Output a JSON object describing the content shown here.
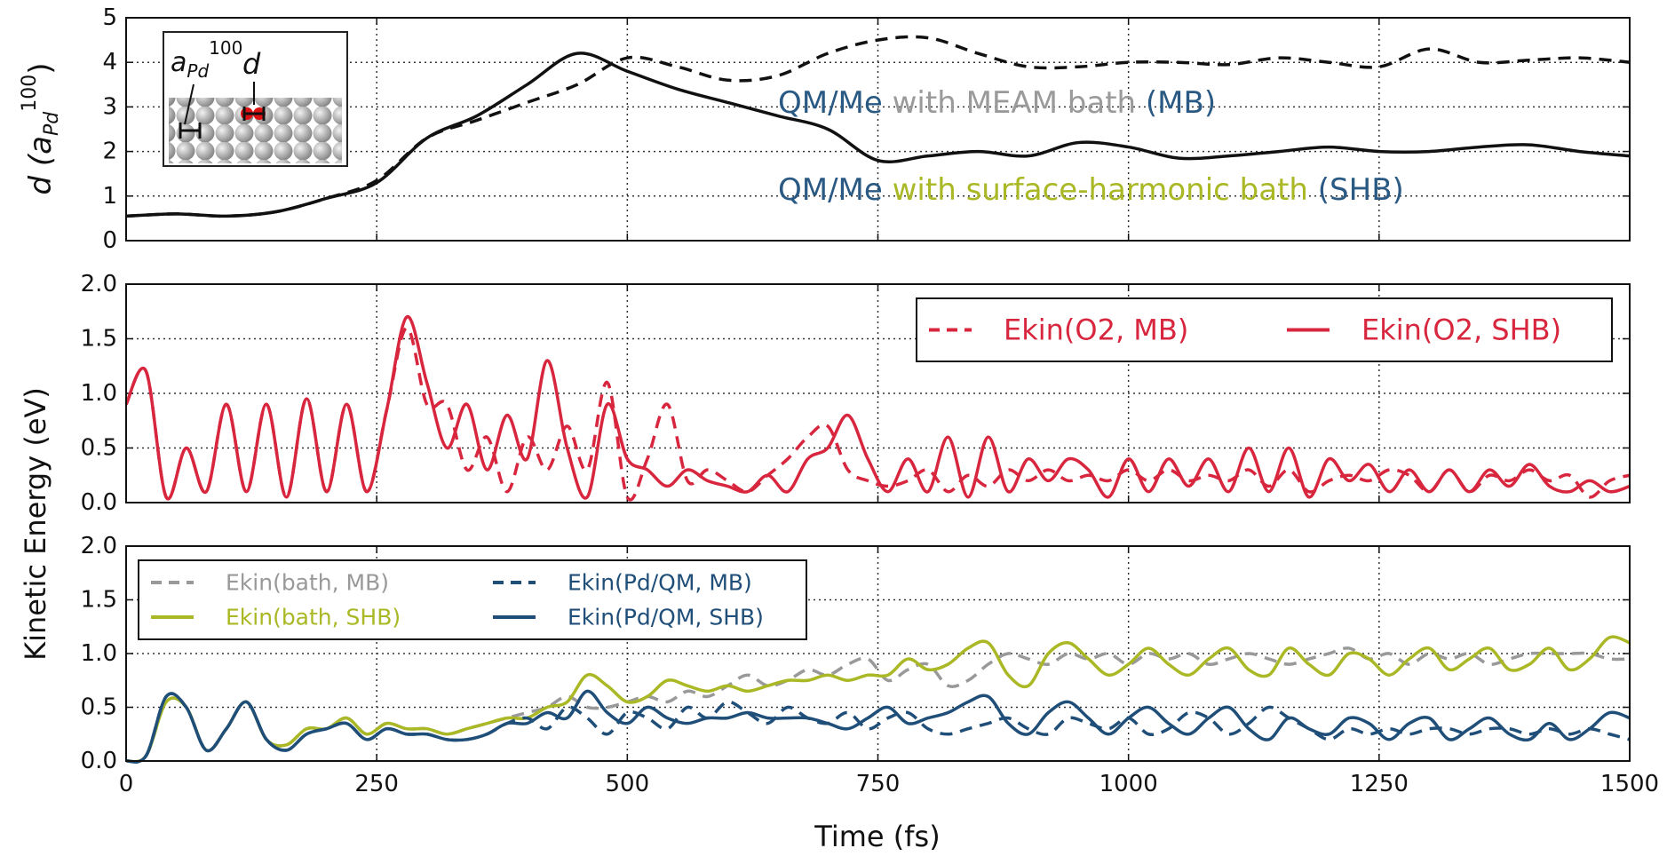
{
  "chart_data": [
    {
      "type": "line",
      "ylabel": {
        "main": "d (a",
        "sub": "Pd",
        "sup": "100",
        "end": ")"
      },
      "x": [
        0,
        50,
        100,
        150,
        200,
        250,
        300,
        350,
        400,
        450,
        500,
        550,
        600,
        650,
        700,
        750,
        800,
        850,
        900,
        950,
        1000,
        1050,
        1100,
        1150,
        1200,
        1250,
        1300,
        1350,
        1400,
        1450,
        1500
      ],
      "series": [
        {
          "color": "#111111",
          "linestyle": "dashed",
          "values": [
            0.55,
            0.6,
            0.55,
            0.65,
            0.95,
            1.35,
            2.3,
            2.7,
            3.1,
            3.5,
            4.1,
            3.9,
            3.6,
            3.7,
            4.2,
            4.5,
            4.55,
            4.2,
            3.9,
            3.9,
            4.0,
            4.0,
            3.95,
            4.1,
            4.0,
            3.9,
            4.3,
            4.0,
            4.05,
            4.1,
            4.0
          ]
        },
        {
          "color": "#111111",
          "linestyle": "solid",
          "values": [
            0.55,
            0.6,
            0.55,
            0.65,
            0.95,
            1.3,
            2.3,
            2.8,
            3.5,
            4.2,
            3.8,
            3.4,
            3.1,
            2.8,
            2.5,
            1.8,
            1.9,
            2.0,
            1.9,
            2.2,
            2.1,
            1.85,
            1.9,
            2.0,
            2.1,
            2.0,
            2.0,
            2.1,
            2.15,
            2.0,
            1.9
          ]
        }
      ],
      "xlim": [
        0,
        1500
      ],
      "xticks": [
        0,
        250,
        500,
        750,
        1000,
        1250,
        1500
      ],
      "show_xtick_labels": false,
      "ylim": [
        0,
        5
      ],
      "yticks": [
        0,
        1,
        2,
        3,
        4,
        5
      ],
      "grid": true,
      "annotations": [
        [
          {
            "text": "QM/Me",
            "color": "#2a5a83"
          },
          {
            "text": "with MEAM bath",
            "color": "#9a9a9a"
          },
          {
            "text": "(MB)",
            "color": "#2a5a83"
          }
        ],
        [
          {
            "text": "QM/Me",
            "color": "#2a5a83"
          },
          {
            "text": "with surface-harmonic bath",
            "color": "#a9b824"
          },
          {
            "text": "(SHB)",
            "color": "#2a5a83"
          }
        ]
      ],
      "inset": {
        "label_a": "a",
        "label_a_sub": "Pd",
        "label_a_sup": "100",
        "label_d": "d"
      }
    },
    {
      "type": "line",
      "ylabel": "Kinetic Energy (eV)",
      "x": [
        0,
        20,
        40,
        60,
        80,
        100,
        120,
        140,
        160,
        180,
        200,
        220,
        240,
        260,
        280,
        300,
        320,
        340,
        360,
        380,
        400,
        420,
        440,
        460,
        480,
        500,
        520,
        540,
        560,
        580,
        600,
        620,
        640,
        660,
        680,
        700,
        720,
        740,
        760,
        780,
        800,
        820,
        840,
        860,
        880,
        900,
        920,
        940,
        960,
        980,
        1000,
        1020,
        1040,
        1060,
        1080,
        1100,
        1120,
        1140,
        1160,
        1180,
        1200,
        1220,
        1240,
        1260,
        1280,
        1300,
        1320,
        1340,
        1360,
        1380,
        1400,
        1420,
        1440,
        1460,
        1480,
        1500
      ],
      "series": [
        {
          "name": "Ekin(O2, MB)",
          "color": "#d7263d",
          "linestyle": "dashed",
          "values": [
            0.9,
            1.2,
            0.05,
            0.5,
            0.1,
            0.9,
            0.1,
            0.9,
            0.05,
            0.95,
            0.1,
            0.9,
            0.1,
            0.85,
            1.6,
            0.9,
            0.9,
            0.3,
            0.6,
            0.1,
            0.6,
            0.3,
            0.7,
            0.3,
            1.1,
            0.05,
            0.4,
            0.9,
            0.2,
            0.3,
            0.2,
            0.1,
            0.25,
            0.4,
            0.6,
            0.7,
            0.3,
            0.2,
            0.15,
            0.2,
            0.3,
            0.1,
            0.25,
            0.15,
            0.3,
            0.2,
            0.3,
            0.2,
            0.25,
            0.2,
            0.3,
            0.2,
            0.3,
            0.2,
            0.25,
            0.2,
            0.3,
            0.15,
            0.3,
            0.1,
            0.2,
            0.25,
            0.2,
            0.3,
            0.25,
            0.1,
            0.3,
            0.1,
            0.25,
            0.2,
            0.3,
            0.2,
            0.25,
            0.05,
            0.2,
            0.25
          ]
        },
        {
          "name": "Ekin(O2, SHB)",
          "color": "#d7263d",
          "linestyle": "solid",
          "values": [
            0.9,
            1.2,
            0.05,
            0.5,
            0.1,
            0.9,
            0.1,
            0.9,
            0.05,
            0.95,
            0.1,
            0.9,
            0.1,
            0.85,
            1.7,
            1.1,
            0.5,
            0.9,
            0.3,
            0.8,
            0.4,
            1.3,
            0.5,
            0.05,
            0.9,
            0.4,
            0.3,
            0.15,
            0.3,
            0.2,
            0.15,
            0.1,
            0.25,
            0.1,
            0.4,
            0.5,
            0.8,
            0.4,
            0.1,
            0.4,
            0.1,
            0.6,
            0.05,
            0.6,
            0.1,
            0.4,
            0.2,
            0.4,
            0.3,
            0.05,
            0.4,
            0.1,
            0.4,
            0.15,
            0.4,
            0.1,
            0.5,
            0.1,
            0.5,
            0.05,
            0.4,
            0.2,
            0.35,
            0.1,
            0.3,
            0.1,
            0.3,
            0.1,
            0.3,
            0.15,
            0.35,
            0.15,
            0.1,
            0.2,
            0.1,
            0.15
          ]
        }
      ],
      "xlim": [
        0,
        1500
      ],
      "xticks": [
        0,
        250,
        500,
        750,
        1000,
        1250,
        1500
      ],
      "show_xtick_labels": false,
      "ylim": [
        0,
        2
      ],
      "yticks": [
        {
          "value": 0,
          "label": "0.0"
        },
        {
          "value": 0.5,
          "label": "0.5"
        },
        {
          "value": 1,
          "label": "1.0"
        },
        {
          "value": 1.5,
          "label": "1.5"
        },
        {
          "value": 2,
          "label": "2.0"
        }
      ],
      "grid": true,
      "legend": "upper right",
      "legend_columns": 2
    },
    {
      "type": "line",
      "xlabel": "Time (fs)",
      "x": [
        0,
        20,
        40,
        60,
        80,
        100,
        120,
        140,
        160,
        180,
        200,
        220,
        240,
        260,
        280,
        300,
        320,
        340,
        360,
        380,
        400,
        420,
        440,
        460,
        480,
        500,
        520,
        540,
        560,
        580,
        600,
        620,
        640,
        660,
        680,
        700,
        720,
        740,
        760,
        780,
        800,
        820,
        840,
        860,
        880,
        900,
        920,
        940,
        960,
        980,
        1000,
        1020,
        1040,
        1060,
        1080,
        1100,
        1120,
        1140,
        1160,
        1180,
        1200,
        1220,
        1240,
        1260,
        1280,
        1300,
        1320,
        1340,
        1360,
        1380,
        1400,
        1420,
        1440,
        1460,
        1480,
        1500
      ],
      "series": [
        {
          "name": "Ekin(bath, MB)",
          "color": "#999999",
          "linestyle": "dashed",
          "values": [
            0,
            0.05,
            0.55,
            0.5,
            0.1,
            0.3,
            0.55,
            0.2,
            0.15,
            0.3,
            0.3,
            0.4,
            0.25,
            0.35,
            0.3,
            0.3,
            0.25,
            0.3,
            0.35,
            0.4,
            0.45,
            0.5,
            0.6,
            0.5,
            0.5,
            0.55,
            0.6,
            0.55,
            0.65,
            0.6,
            0.7,
            0.8,
            0.7,
            0.75,
            0.85,
            0.8,
            0.9,
            0.95,
            0.75,
            0.85,
            0.9,
            0.7,
            0.75,
            0.9,
            1.0,
            0.95,
            0.9,
            1.0,
            0.95,
            1.0,
            0.9,
            1.0,
            0.95,
            1.0,
            0.9,
            0.95,
            1.0,
            0.95,
            0.9,
            0.95,
            1.0,
            1.05,
            0.95,
            1.0,
            0.9,
            1.0,
            0.95,
            1.0,
            0.9,
            0.95,
            1.0,
            1.0,
            1.0,
            1.0,
            0.95,
            0.95
          ]
        },
        {
          "name": "Ekin(bath, SHB)",
          "color": "#a9b824",
          "linestyle": "solid",
          "values": [
            0,
            0.05,
            0.55,
            0.5,
            0.1,
            0.3,
            0.55,
            0.2,
            0.15,
            0.3,
            0.3,
            0.4,
            0.25,
            0.35,
            0.3,
            0.3,
            0.25,
            0.3,
            0.35,
            0.4,
            0.4,
            0.5,
            0.55,
            0.8,
            0.7,
            0.55,
            0.6,
            0.75,
            0.7,
            0.65,
            0.7,
            0.65,
            0.7,
            0.75,
            0.75,
            0.8,
            0.75,
            0.8,
            0.8,
            0.95,
            0.85,
            0.9,
            1.05,
            1.1,
            0.8,
            0.7,
            1.0,
            1.1,
            0.95,
            0.8,
            0.9,
            1.05,
            0.9,
            0.8,
            0.95,
            1.05,
            0.85,
            0.8,
            1.05,
            0.9,
            0.8,
            1.0,
            0.95,
            0.8,
            0.95,
            1.05,
            0.85,
            0.95,
            1.05,
            0.85,
            0.9,
            1.05,
            0.85,
            0.95,
            1.15,
            1.1
          ]
        },
        {
          "name": "Ekin(Pd/QM, MB)",
          "color": "#1f4e79",
          "linestyle": "dashed",
          "values": [
            0,
            0.05,
            0.6,
            0.5,
            0.1,
            0.3,
            0.55,
            0.2,
            0.1,
            0.25,
            0.3,
            0.35,
            0.2,
            0.3,
            0.25,
            0.25,
            0.2,
            0.2,
            0.25,
            0.35,
            0.4,
            0.3,
            0.5,
            0.4,
            0.25,
            0.45,
            0.4,
            0.3,
            0.5,
            0.4,
            0.55,
            0.45,
            0.35,
            0.5,
            0.4,
            0.35,
            0.45,
            0.3,
            0.4,
            0.45,
            0.3,
            0.25,
            0.3,
            0.35,
            0.4,
            0.3,
            0.25,
            0.4,
            0.35,
            0.3,
            0.4,
            0.25,
            0.3,
            0.45,
            0.4,
            0.25,
            0.35,
            0.5,
            0.4,
            0.3,
            0.2,
            0.3,
            0.25,
            0.3,
            0.25,
            0.3,
            0.3,
            0.25,
            0.3,
            0.3,
            0.25,
            0.3,
            0.25,
            0.3,
            0.25,
            0.2
          ]
        },
        {
          "name": "Ekin(Pd/QM, SHB)",
          "color": "#1f4e79",
          "linestyle": "solid",
          "values": [
            0,
            0.05,
            0.6,
            0.5,
            0.1,
            0.3,
            0.55,
            0.2,
            0.1,
            0.25,
            0.3,
            0.35,
            0.2,
            0.3,
            0.25,
            0.25,
            0.2,
            0.2,
            0.25,
            0.35,
            0.35,
            0.45,
            0.4,
            0.65,
            0.45,
            0.35,
            0.5,
            0.4,
            0.35,
            0.4,
            0.4,
            0.45,
            0.4,
            0.4,
            0.4,
            0.35,
            0.3,
            0.4,
            0.5,
            0.35,
            0.4,
            0.45,
            0.55,
            0.6,
            0.35,
            0.25,
            0.45,
            0.55,
            0.4,
            0.25,
            0.4,
            0.5,
            0.35,
            0.25,
            0.4,
            0.5,
            0.3,
            0.2,
            0.4,
            0.3,
            0.25,
            0.4,
            0.35,
            0.2,
            0.35,
            0.4,
            0.2,
            0.3,
            0.4,
            0.25,
            0.2,
            0.35,
            0.2,
            0.3,
            0.45,
            0.4
          ]
        }
      ],
      "xlim": [
        0,
        1500
      ],
      "xticks": [
        0,
        250,
        500,
        750,
        1000,
        1250,
        1500
      ],
      "show_xtick_labels": true,
      "ylim": [
        0,
        2
      ],
      "yticks": [
        {
          "value": 0,
          "label": "0.0"
        },
        {
          "value": 0.5,
          "label": "0.5"
        },
        {
          "value": 1,
          "label": "1.0"
        },
        {
          "value": 1.5,
          "label": "1.5"
        },
        {
          "value": 2,
          "label": "2.0"
        }
      ],
      "grid": true,
      "legend": "upper left",
      "legend_columns": 2
    }
  ]
}
